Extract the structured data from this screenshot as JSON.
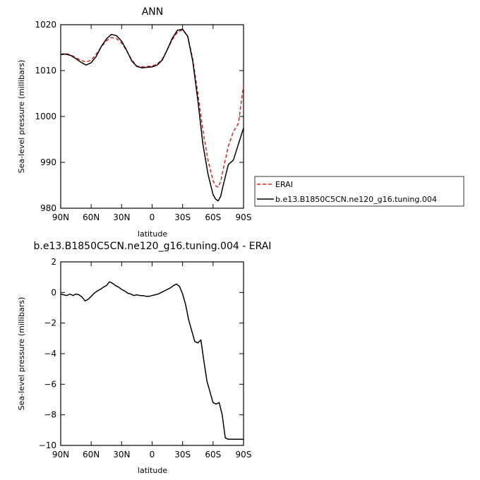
{
  "chart_data": [
    {
      "type": "line",
      "title": "ANN",
      "xlabel": "latitude",
      "ylabel": "Sea-level pressure (millibars)",
      "xlim": [
        90,
        -90
      ],
      "ylim": [
        980,
        1020
      ],
      "xticks": [
        90,
        60,
        30,
        0,
        -30,
        -60,
        -90
      ],
      "xtick_labels": [
        "90N",
        "60N",
        "30N",
        "0",
        "30S",
        "60S",
        "90S"
      ],
      "yticks": [
        980,
        990,
        1000,
        1010,
        1020
      ],
      "ytick_labels": [
        "980",
        "990",
        "1000",
        "1010",
        "1020"
      ],
      "legend": "right",
      "series": [
        {
          "name": "ERAI",
          "color": "#dd2222",
          "dash": "dashed",
          "x": [
            90,
            85,
            80,
            75,
            70,
            65,
            60,
            55,
            50,
            45,
            40,
            35,
            30,
            25,
            20,
            15,
            10,
            5,
            0,
            -5,
            -10,
            -15,
            -20,
            -25,
            -30,
            -35,
            -40,
            -45,
            -50,
            -55,
            -60,
            -62.5,
            -65,
            -67.5,
            -70,
            -75,
            -80,
            -85,
            -90
          ],
          "y": [
            1013.6,
            1013.7,
            1013.4,
            1012.8,
            1012.2,
            1011.9,
            1012.3,
            1013.6,
            1015.2,
            1016.5,
            1017.2,
            1017.0,
            1016.0,
            1014.3,
            1012.3,
            1011.0,
            1010.8,
            1010.9,
            1011.0,
            1011.4,
            1012.5,
            1014.6,
            1016.8,
            1018.4,
            1018.9,
            1017.5,
            1012.5,
            1005.0,
            997.0,
            990.5,
            986.0,
            984.9,
            984.6,
            985.8,
            988.5,
            993.5,
            996.7,
            998.5,
            1006.8
          ]
        },
        {
          "name": "b.e13.B1850C5CN.ne120_g16.tuning.004",
          "color": "#000000",
          "dash": "solid",
          "x": [
            90,
            85,
            80,
            75,
            70,
            65,
            60,
            55,
            50,
            45,
            40,
            35,
            30,
            25,
            20,
            15,
            10,
            5,
            0,
            -5,
            -10,
            -15,
            -20,
            -25,
            -30,
            -35,
            -40,
            -45,
            -50,
            -55,
            -60,
            -62.5,
            -65,
            -67.5,
            -70,
            -75,
            -80,
            -85,
            -90
          ],
          "y": [
            1013.5,
            1013.6,
            1013.3,
            1012.6,
            1011.8,
            1011.2,
            1011.7,
            1013.1,
            1015.3,
            1016.9,
            1017.9,
            1017.6,
            1016.4,
            1014.4,
            1012.1,
            1010.9,
            1010.6,
            1010.7,
            1010.8,
            1011.2,
            1012.3,
            1014.6,
            1017.1,
            1018.8,
            1019.0,
            1017.5,
            1012.0,
            1003.5,
            994.0,
            987.5,
            983.0,
            982.0,
            981.6,
            982.6,
            985.0,
            989.5,
            990.5,
            994.0,
            997.5
          ]
        }
      ]
    },
    {
      "type": "line",
      "title": "b.e13.B1850C5CN.ne120_g16.tuning.004 - ERAI",
      "xlabel": "latitude",
      "ylabel": "Sea-level pressure (millibars)",
      "xlim": [
        90,
        -90
      ],
      "ylim": [
        -10,
        2
      ],
      "xticks": [
        90,
        60,
        30,
        0,
        -30,
        -60,
        -90
      ],
      "xtick_labels": [
        "90N",
        "60N",
        "30N",
        "0",
        "30S",
        "60S",
        "90S"
      ],
      "yticks": [
        -10,
        -8,
        -6,
        -4,
        -2,
        0,
        2
      ],
      "ytick_labels": [
        "−10",
        "−8",
        "−6",
        "−4",
        "−2",
        "0",
        "2"
      ],
      "series": [
        {
          "color": "#000000",
          "dash": "solid",
          "x": [
            90,
            87,
            84,
            81,
            78,
            75,
            72,
            69,
            66,
            63,
            60,
            57,
            54,
            51,
            48,
            45,
            42,
            39,
            36,
            33,
            30,
            27,
            24,
            21,
            18,
            15,
            12,
            9,
            6,
            3,
            0,
            -3,
            -6,
            -9,
            -12,
            -15,
            -18,
            -21,
            -24,
            -27,
            -30,
            -33,
            -36,
            -39,
            -42,
            -45,
            -48,
            -51,
            -54,
            -57,
            -60,
            -63,
            -66,
            -69,
            -72,
            -75,
            -78,
            -81,
            -84,
            -87,
            -89,
            -90
          ],
          "y": [
            -0.1,
            -0.15,
            -0.2,
            -0.1,
            -0.2,
            -0.1,
            -0.15,
            -0.3,
            -0.55,
            -0.45,
            -0.25,
            -0.05,
            0.1,
            0.2,
            0.35,
            0.45,
            0.7,
            0.6,
            0.45,
            0.35,
            0.2,
            0.1,
            -0.05,
            -0.1,
            -0.2,
            -0.15,
            -0.2,
            -0.2,
            -0.25,
            -0.25,
            -0.2,
            -0.15,
            -0.1,
            0.0,
            0.1,
            0.2,
            0.3,
            0.45,
            0.55,
            0.4,
            -0.1,
            -0.8,
            -1.8,
            -2.5,
            -3.2,
            -3.3,
            -3.1,
            -4.5,
            -5.8,
            -6.5,
            -7.2,
            -7.3,
            -7.2,
            -8.0,
            -9.5,
            -9.6,
            -9.6,
            -9.6,
            -9.6,
            -9.6,
            -9.6,
            -9.6
          ]
        }
      ]
    }
  ]
}
